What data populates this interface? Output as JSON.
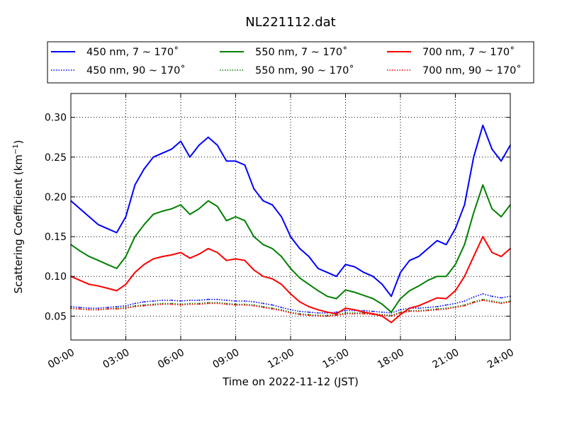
{
  "chart_data": {
    "type": "line",
    "title": "NL221112.dat",
    "xlabel": "Time on 2022-11-12 (JST)",
    "ylabel": "Scattering Coefficient (km",
    "ylabel_sup": "−1",
    "ylabel_close": ")",
    "xlim": [
      "00:00",
      "24:00"
    ],
    "ylim": [
      0.02,
      0.33
    ],
    "x_ticks": [
      "00:00",
      "03:00",
      "06:00",
      "09:00",
      "12:00",
      "15:00",
      "18:00",
      "21:00",
      "24:00"
    ],
    "y_ticks": [
      "0.05",
      "0.10",
      "0.15",
      "0.20",
      "0.25",
      "0.30"
    ],
    "grid": true,
    "legend_position": "top",
    "x_hours": [
      0,
      0.5,
      1,
      1.5,
      2,
      2.5,
      3,
      3.5,
      4,
      4.5,
      5,
      5.5,
      6,
      6.5,
      7,
      7.5,
      8,
      8.5,
      9,
      9.5,
      10,
      10.5,
      11,
      11.5,
      12,
      12.5,
      13,
      13.5,
      14,
      14.5,
      15,
      15.5,
      16,
      16.5,
      17,
      17.5,
      18,
      18.5,
      19,
      19.5,
      20,
      20.5,
      21,
      21.5,
      22,
      22.5,
      23,
      23.5,
      24
    ],
    "series": [
      {
        "name": "450 nm, 7 ~ 170˚",
        "color": "#0000ff",
        "style": "solid",
        "values": [
          0.195,
          0.185,
          0.175,
          0.165,
          0.16,
          0.155,
          0.175,
          0.215,
          0.235,
          0.25,
          0.255,
          0.26,
          0.27,
          0.25,
          0.265,
          0.275,
          0.265,
          0.245,
          0.245,
          0.24,
          0.21,
          0.195,
          0.19,
          0.175,
          0.15,
          0.135,
          0.125,
          0.11,
          0.105,
          0.1,
          0.115,
          0.112,
          0.105,
          0.1,
          0.09,
          0.075,
          0.105,
          0.12,
          0.125,
          0.135,
          0.145,
          0.14,
          0.16,
          0.19,
          0.25,
          0.29,
          0.26,
          0.245,
          0.265
        ]
      },
      {
        "name": "450 nm, 90 ~ 170˚",
        "color": "#0000ff",
        "style": "dotted",
        "values": [
          0.062,
          0.061,
          0.06,
          0.06,
          0.061,
          0.062,
          0.063,
          0.066,
          0.068,
          0.069,
          0.07,
          0.07,
          0.069,
          0.07,
          0.07,
          0.071,
          0.071,
          0.07,
          0.069,
          0.069,
          0.068,
          0.066,
          0.064,
          0.061,
          0.058,
          0.056,
          0.055,
          0.054,
          0.054,
          0.055,
          0.057,
          0.057,
          0.057,
          0.056,
          0.055,
          0.054,
          0.058,
          0.06,
          0.06,
          0.061,
          0.062,
          0.064,
          0.066,
          0.069,
          0.074,
          0.078,
          0.075,
          0.073,
          0.075
        ]
      },
      {
        "name": "550 nm, 7 ~ 170˚",
        "color": "#008000",
        "style": "solid",
        "values": [
          0.14,
          0.132,
          0.125,
          0.12,
          0.115,
          0.11,
          0.125,
          0.15,
          0.165,
          0.178,
          0.182,
          0.185,
          0.19,
          0.178,
          0.185,
          0.195,
          0.188,
          0.17,
          0.175,
          0.17,
          0.15,
          0.14,
          0.135,
          0.125,
          0.11,
          0.098,
          0.09,
          0.082,
          0.075,
          0.072,
          0.083,
          0.08,
          0.076,
          0.072,
          0.065,
          0.055,
          0.072,
          0.082,
          0.088,
          0.095,
          0.1,
          0.1,
          0.115,
          0.14,
          0.18,
          0.215,
          0.185,
          0.175,
          0.19
        ]
      },
      {
        "name": "550 nm, 90 ~ 170˚",
        "color": "#008000",
        "style": "dotted",
        "values": [
          0.06,
          0.059,
          0.058,
          0.058,
          0.059,
          0.06,
          0.061,
          0.063,
          0.064,
          0.065,
          0.066,
          0.066,
          0.065,
          0.066,
          0.066,
          0.067,
          0.067,
          0.066,
          0.065,
          0.065,
          0.064,
          0.062,
          0.06,
          0.058,
          0.055,
          0.053,
          0.052,
          0.051,
          0.051,
          0.052,
          0.054,
          0.054,
          0.054,
          0.053,
          0.052,
          0.051,
          0.055,
          0.057,
          0.057,
          0.058,
          0.059,
          0.06,
          0.062,
          0.064,
          0.068,
          0.071,
          0.069,
          0.067,
          0.069
        ]
      },
      {
        "name": "700 nm, 7 ~ 170˚",
        "color": "#ff0000",
        "style": "solid",
        "values": [
          0.1,
          0.095,
          0.09,
          0.088,
          0.085,
          0.082,
          0.09,
          0.105,
          0.115,
          0.122,
          0.125,
          0.127,
          0.13,
          0.123,
          0.128,
          0.135,
          0.13,
          0.12,
          0.122,
          0.12,
          0.108,
          0.1,
          0.097,
          0.09,
          0.078,
          0.068,
          0.062,
          0.058,
          0.055,
          0.053,
          0.06,
          0.058,
          0.055,
          0.053,
          0.05,
          0.042,
          0.052,
          0.06,
          0.063,
          0.068,
          0.073,
          0.072,
          0.082,
          0.1,
          0.125,
          0.15,
          0.13,
          0.125,
          0.135
        ]
      },
      {
        "name": "700 nm, 90 ~ 170˚",
        "color": "#ff0000",
        "style": "dotted",
        "values": [
          0.06,
          0.059,
          0.058,
          0.058,
          0.059,
          0.059,
          0.06,
          0.062,
          0.063,
          0.064,
          0.065,
          0.065,
          0.064,
          0.065,
          0.065,
          0.066,
          0.066,
          0.065,
          0.064,
          0.064,
          0.063,
          0.061,
          0.059,
          0.057,
          0.054,
          0.052,
          0.051,
          0.05,
          0.05,
          0.051,
          0.053,
          0.053,
          0.053,
          0.052,
          0.051,
          0.05,
          0.054,
          0.056,
          0.056,
          0.057,
          0.058,
          0.059,
          0.061,
          0.063,
          0.067,
          0.07,
          0.068,
          0.066,
          0.068
        ]
      }
    ]
  }
}
